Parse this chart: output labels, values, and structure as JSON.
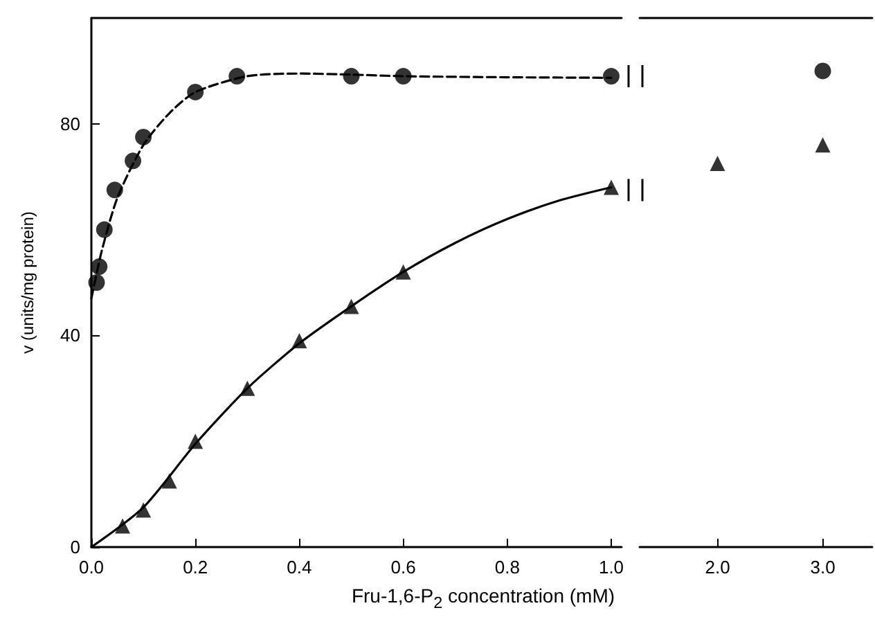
{
  "chart_data": [
    {
      "type": "scatter",
      "xlabel": "Fru-1,6-P$_{2}$ concentration (mM)",
      "ylabel": "v (units/mg protein)",
      "xlim": [
        0,
        1.02
      ],
      "xticks": [
        {
          "value": 0,
          "label": "0.0"
        },
        {
          "value": 0.2,
          "label": "0.2"
        },
        {
          "value": 0.4,
          "label": "0.4"
        },
        {
          "value": 0.6,
          "label": "0.6"
        },
        {
          "value": 0.8,
          "label": "0.8"
        },
        {
          "value": 1.0,
          "label": "1.0"
        }
      ],
      "ylim": [
        0,
        100
      ],
      "yticks": [
        0,
        40,
        80
      ],
      "series": [
        {
          "color": "#000000",
          "marker": "circle",
          "x": [
            0.01,
            0.015,
            0.025,
            0.045,
            0.08,
            0.1,
            0.2,
            0.28,
            0.5,
            0.6,
            1.0
          ],
          "values": [
            50,
            53,
            60,
            67.5,
            73,
            77.5,
            86,
            89,
            89,
            89,
            89
          ]
        },
        {
          "color": "#000000",
          "marker": "triangle",
          "x": [
            0.06,
            0.1,
            0.15,
            0.2,
            0.3,
            0.4,
            0.5,
            0.6,
            1.0
          ],
          "values": [
            4,
            7,
            12.5,
            20,
            30,
            39,
            45.5,
            52,
            68
          ]
        },
        {
          "type": "line",
          "color": "#000000",
          "marker": "none",
          "line_style": "dashed",
          "x": [
            0,
            0.02,
            0.05,
            0.1,
            0.15,
            0.2,
            0.3,
            0.4,
            0.5,
            0.6,
            0.8,
            1.0
          ],
          "values": [
            47,
            56,
            66,
            76,
            82,
            86,
            89,
            89.5,
            89.3,
            89,
            88.8,
            88.7
          ]
        },
        {
          "type": "line",
          "color": "#000000",
          "marker": "none",
          "line_style": "solid",
          "x": [
            0,
            0.1,
            0.2,
            0.3,
            0.4,
            0.5,
            0.6,
            0.7,
            0.8,
            0.9,
            1.0
          ],
          "values": [
            0,
            7.5,
            19.5,
            30,
            38.5,
            45.5,
            52,
            57.5,
            62,
            65.5,
            68
          ]
        }
      ]
    },
    {
      "type": "scatter",
      "xlim": [
        1.26,
        3.47
      ],
      "xticks": [
        {
          "value": 2,
          "label": "2.0"
        },
        {
          "value": 3,
          "label": "3.0"
        }
      ],
      "ylim": [
        0,
        100
      ],
      "tick_labels": "x",
      "series": [
        {
          "color": "#000000",
          "marker": "circle",
          "x": [
            3
          ],
          "values": [
            90
          ]
        },
        {
          "color": "#000000",
          "marker": "triangle",
          "x": [
            2,
            3
          ],
          "values": [
            72.5,
            76
          ]
        }
      ]
    }
  ]
}
